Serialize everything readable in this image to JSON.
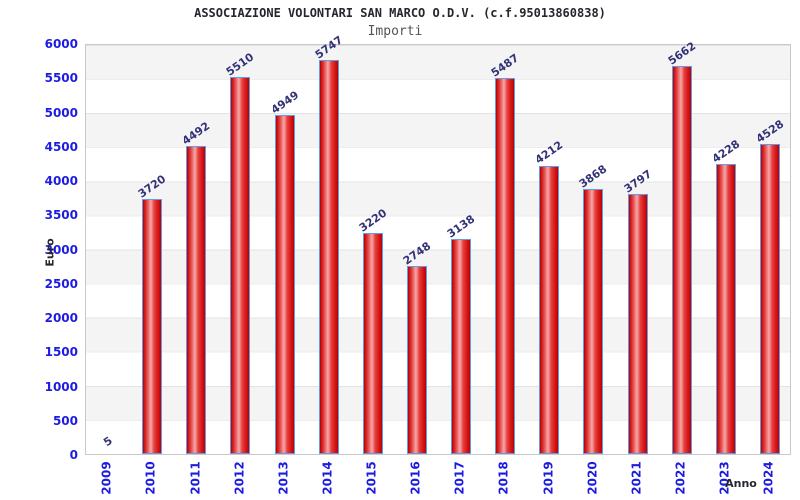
{
  "header": {
    "title": "ASSOCIAZIONE VOLONTARI SAN MARCO O.D.V. (c.f.95013860838)",
    "subtitle": "Importi"
  },
  "chart_data": {
    "type": "bar",
    "title": "ASSOCIAZIONE VOLONTARI SAN MARCO O.D.V. (c.f.95013860838)",
    "subtitle": "Importi",
    "xlabel": "Anno",
    "ylabel": "Euro",
    "categories": [
      "2009",
      "2010",
      "2011",
      "2012",
      "2013",
      "2014",
      "2015",
      "2016",
      "2017",
      "2018",
      "2019",
      "2020",
      "2021",
      "2022",
      "2023",
      "2024"
    ],
    "values": [
      5,
      3720,
      4492,
      5510,
      4949,
      5747,
      3220,
      2748,
      3138,
      5487,
      4212,
      3868,
      3797,
      5662,
      4228,
      4528
    ],
    "ylim": [
      0,
      6000
    ],
    "ytick_step": 500,
    "yticks": [
      0,
      500,
      1000,
      1500,
      2000,
      2500,
      3000,
      3500,
      4000,
      4500,
      5000,
      5500,
      6000
    ],
    "grid": true,
    "legend_position": "none",
    "band_colors": [
      "#f4f4f5",
      "#ffffff"
    ],
    "colors": {
      "bar_fill_dark": "#bb0000",
      "bar_fill_light": "#f5a9a9",
      "bar_border": "#5e9ee8",
      "tick_label": "#1c1ce0",
      "value_label": "#323278",
      "title_text": "#26262e",
      "subtitle_text": "#555555"
    }
  }
}
